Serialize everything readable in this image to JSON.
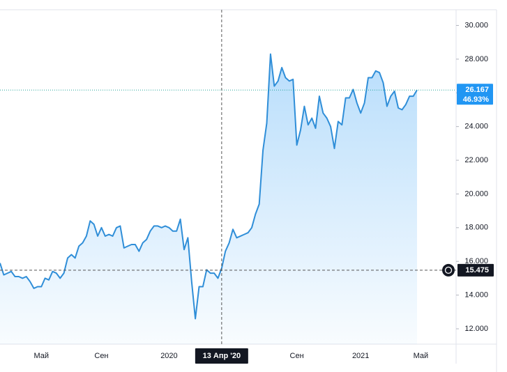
{
  "chart_data": {
    "type": "area",
    "categories": [
      null,
      null,
      null,
      null,
      null,
      null,
      null,
      null,
      null,
      null,
      null,
      "Май",
      null,
      null,
      null,
      null,
      null,
      null,
      null,
      null,
      null,
      null,
      null,
      null,
      null,
      null,
      null,
      "Сен",
      null,
      null,
      null,
      null,
      null,
      null,
      null,
      null,
      null,
      null,
      null,
      null,
      null,
      null,
      null,
      null,
      null,
      "2020",
      null,
      null,
      null,
      null,
      null,
      null,
      null,
      null,
      null,
      null,
      null,
      null,
      null,
      "13 Апр '20",
      null,
      null,
      null,
      null,
      null,
      null,
      null,
      null,
      null,
      null,
      null,
      null,
      null,
      null,
      null,
      null,
      null,
      null,
      null,
      "Сен",
      null,
      null,
      null,
      null,
      null,
      null,
      null,
      null,
      null,
      null,
      null,
      null,
      null,
      null,
      null,
      null,
      "2021",
      null,
      null,
      null,
      null,
      null,
      null,
      null,
      null,
      null,
      null,
      null,
      null,
      null,
      null,
      null,
      "Май"
    ],
    "values": [
      15.9,
      15.2,
      15.3,
      15.4,
      15.1,
      15.1,
      15.0,
      15.1,
      14.8,
      14.4,
      14.5,
      14.5,
      15.0,
      14.9,
      15.4,
      15.3,
      15.0,
      15.3,
      16.2,
      16.4,
      16.2,
      16.9,
      17.1,
      17.5,
      18.4,
      18.2,
      17.5,
      18.0,
      17.5,
      17.6,
      17.5,
      18.0,
      18.1,
      16.8,
      16.9,
      17.0,
      17.0,
      16.6,
      17.1,
      17.3,
      17.8,
      18.1,
      18.1,
      18.0,
      18.1,
      18.0,
      17.8,
      17.8,
      18.5,
      16.7,
      17.4,
      14.8,
      12.6,
      14.5,
      14.5,
      15.5,
      15.3,
      15.3,
      15.0,
      15.6,
      16.6,
      17.1,
      17.9,
      17.4,
      17.5,
      17.6,
      17.7,
      18.0,
      18.8,
      19.4,
      22.6,
      24.2,
      28.3,
      26.4,
      26.7,
      27.5,
      26.9,
      26.7,
      26.8,
      22.9,
      23.8,
      25.2,
      24.1,
      24.5,
      23.9,
      25.8,
      24.8,
      24.5,
      24.0,
      22.7,
      24.3,
      24.1,
      25.7,
      25.7,
      26.2,
      25.4,
      24.8,
      25.4,
      26.9,
      26.9,
      27.3,
      27.2,
      26.6,
      25.2,
      25.8,
      26.1,
      25.1,
      25.0,
      25.3,
      25.8,
      25.8,
      26.167,
      null
    ],
    "color": "#2f8ed8",
    "ylim": [
      11.09,
      30.93
    ],
    "yticks": [
      {
        "value": 12,
        "label": "12.000"
      },
      {
        "value": 14,
        "label": "14.000"
      },
      {
        "value": 16,
        "label": "16.000"
      },
      {
        "value": 18,
        "label": "18.000"
      },
      {
        "value": 20,
        "label": "20.000"
      },
      {
        "value": 22,
        "label": "22.000"
      },
      {
        "value": 24,
        "label": "24.000"
      },
      {
        "value": 26,
        "label": "26.000"
      },
      {
        "value": 28,
        "label": "28.000"
      },
      {
        "value": 30,
        "label": "30.000"
      }
    ],
    "last_price": 26.167,
    "last_change_label": "46.93%",
    "crosshair": {
      "x": "13 Апр '20",
      "y": 15.475
    }
  }
}
